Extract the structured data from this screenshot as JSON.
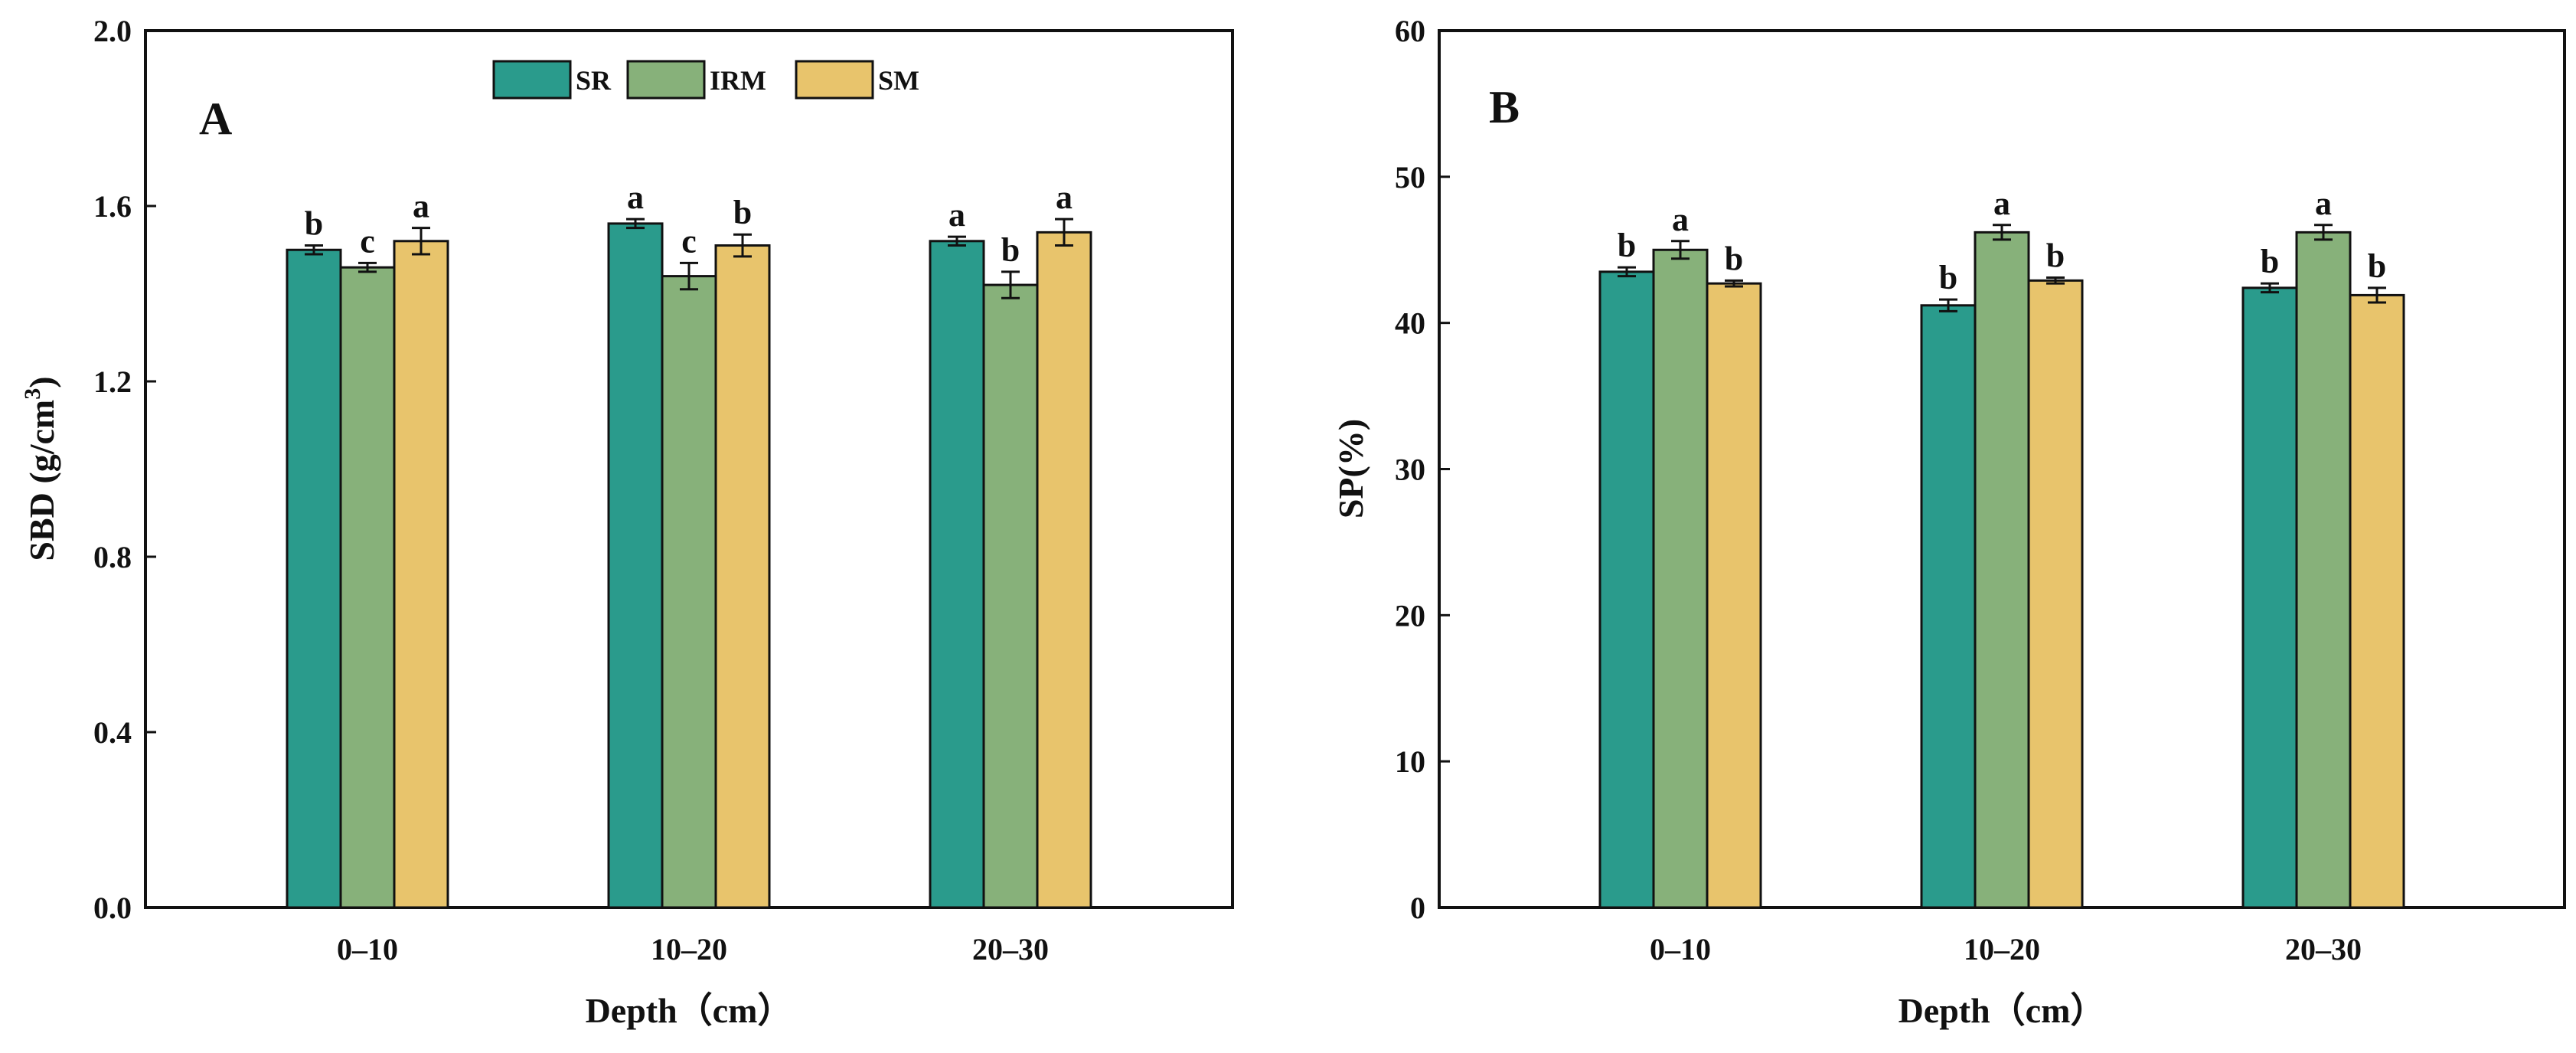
{
  "colors": {
    "SR": "#2a9b8c",
    "IRM": "#87b17a",
    "SM": "#e8c46c"
  },
  "legend": [
    {
      "name": "SR",
      "color_key": "SR"
    },
    {
      "name": "IRM",
      "color_key": "IRM"
    },
    {
      "name": "SM",
      "color_key": "SM"
    }
  ],
  "chart_data": [
    {
      "type": "bar",
      "panel_label": "A",
      "title": "",
      "xlabel": "Depth（cm）",
      "ylabel_main": "SBD (g/cm",
      "ylabel_sup": "3",
      "ylabel_end": ")",
      "ylim": [
        0,
        2.0
      ],
      "yticks": [
        "0.0",
        "0.4",
        "0.8",
        "1.2",
        "1.6",
        "2.0"
      ],
      "categories": [
        "0–10",
        "10–20",
        "20–30"
      ],
      "legend_position": "top-center",
      "series": [
        {
          "name": "SR",
          "values": [
            1.5,
            1.56,
            1.52
          ],
          "errors": [
            0.01,
            0.01,
            0.01
          ],
          "letters": [
            "b",
            "a",
            "a"
          ]
        },
        {
          "name": "IRM",
          "values": [
            1.46,
            1.44,
            1.42
          ],
          "errors": [
            0.01,
            0.03,
            0.03
          ],
          "letters": [
            "c",
            "c",
            "b"
          ]
        },
        {
          "name": "SM",
          "values": [
            1.52,
            1.51,
            1.54
          ],
          "errors": [
            0.03,
            0.025,
            0.03
          ],
          "letters": [
            "a",
            "b",
            "a"
          ]
        }
      ]
    },
    {
      "type": "bar",
      "panel_label": "B",
      "title": "",
      "xlabel": "Depth（cm）",
      "ylabel_main": "SP(%)",
      "ylabel_sup": "",
      "ylabel_end": "",
      "ylim": [
        0,
        60
      ],
      "yticks": [
        "0",
        "10",
        "20",
        "30",
        "40",
        "50",
        "60"
      ],
      "categories": [
        "0–10",
        "10–20",
        "20–30"
      ],
      "legend_position": "none",
      "series": [
        {
          "name": "SR",
          "values": [
            43.5,
            41.2,
            42.4
          ],
          "errors": [
            0.3,
            0.4,
            0.3
          ],
          "letters": [
            "b",
            "b",
            "b"
          ]
        },
        {
          "name": "IRM",
          "values": [
            45.0,
            46.2,
            46.2
          ],
          "errors": [
            0.6,
            0.5,
            0.5
          ],
          "letters": [
            "a",
            "a",
            "a"
          ]
        },
        {
          "name": "SM",
          "values": [
            42.7,
            42.9,
            41.9
          ],
          "errors": [
            0.2,
            0.2,
            0.5
          ],
          "letters": [
            "b",
            "b",
            "b"
          ]
        }
      ]
    }
  ]
}
